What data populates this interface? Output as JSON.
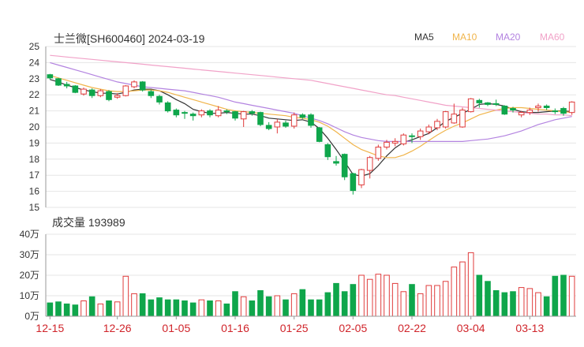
{
  "header": {
    "title": "士兰微[SH600460] 2024-03-19",
    "legend": [
      {
        "label": "MA5",
        "color": "#333333"
      },
      {
        "label": "MA10",
        "color": "#f0b44a"
      },
      {
        "label": "MA20",
        "color": "#b383e0"
      },
      {
        "label": "MA60",
        "color": "#f1a2c8"
      }
    ]
  },
  "volume_header": "成交量 193989",
  "colors": {
    "up": "#e03c3c",
    "down": "#0fa64b",
    "grid": "#e6e6e6",
    "axis": "#555555",
    "date_label": "#d0242a"
  },
  "chart_data": [
    {
      "type": "candlestick",
      "title": "士兰微[SH600460] 2024-03-19",
      "ylim": [
        15,
        25
      ],
      "yticks": [
        "15",
        "16",
        "17",
        "18",
        "19",
        "20",
        "21",
        "22",
        "23",
        "24",
        "25"
      ],
      "xtick_labels": [
        {
          "index": 0,
          "label": "12-15"
        },
        {
          "index": 8,
          "label": "12-26"
        },
        {
          "index": 15,
          "label": "01-05"
        },
        {
          "index": 22,
          "label": "01-16"
        },
        {
          "index": 29,
          "label": "01-25"
        },
        {
          "index": 36,
          "label": "02-05"
        },
        {
          "index": 43,
          "label": "02-22"
        },
        {
          "index": 50,
          "label": "03-04"
        },
        {
          "index": 57,
          "label": "03-13"
        }
      ],
      "candles": [
        [
          23.25,
          23.05,
          23.3,
          22.95
        ],
        [
          23.0,
          22.6,
          23.05,
          22.55
        ],
        [
          22.65,
          22.55,
          22.8,
          22.4
        ],
        [
          22.55,
          22.15,
          22.6,
          22.1
        ],
        [
          22.05,
          22.35,
          22.45,
          21.95
        ],
        [
          22.3,
          21.95,
          22.4,
          21.8
        ],
        [
          21.95,
          22.25,
          22.35,
          21.85
        ],
        [
          22.2,
          21.7,
          22.3,
          21.6
        ],
        [
          21.85,
          21.95,
          22.1,
          21.75
        ],
        [
          21.95,
          22.55,
          22.6,
          21.9
        ],
        [
          22.5,
          22.8,
          22.9,
          22.4
        ],
        [
          22.8,
          22.3,
          22.85,
          22.2
        ],
        [
          22.2,
          21.95,
          22.3,
          21.8
        ],
        [
          21.9,
          21.55,
          22.0,
          21.4
        ],
        [
          21.5,
          21.0,
          21.6,
          20.9
        ],
        [
          21.05,
          20.75,
          21.15,
          20.6
        ],
        [
          20.9,
          20.85,
          21.0,
          20.5
        ],
        [
          20.8,
          20.7,
          20.9,
          20.4
        ],
        [
          20.75,
          21.0,
          21.1,
          20.6
        ],
        [
          21.0,
          20.75,
          21.1,
          20.6
        ],
        [
          20.7,
          21.05,
          21.3,
          20.6
        ],
        [
          21.0,
          20.95,
          21.1,
          20.8
        ],
        [
          20.95,
          20.55,
          21.0,
          20.4
        ],
        [
          20.5,
          20.95,
          21.0,
          20.0
        ],
        [
          20.95,
          20.85,
          21.05,
          20.7
        ],
        [
          20.9,
          20.15,
          20.95,
          20.05
        ],
        [
          20.1,
          19.9,
          20.3,
          19.8
        ],
        [
          20.0,
          20.3,
          20.5,
          19.6
        ],
        [
          20.25,
          20.05,
          20.4,
          19.95
        ],
        [
          20.05,
          20.75,
          20.9,
          19.9
        ],
        [
          20.75,
          20.6,
          20.85,
          20.5
        ],
        [
          20.75,
          20.1,
          20.85,
          19.95
        ],
        [
          19.95,
          19.1,
          20.0,
          19.05
        ],
        [
          18.9,
          18.15,
          19.0,
          17.95
        ],
        [
          17.85,
          17.75,
          18.2,
          17.6
        ],
        [
          18.3,
          16.9,
          18.35,
          16.7
        ],
        [
          17.1,
          16.05,
          17.15,
          15.8
        ],
        [
          16.4,
          17.35,
          17.4,
          16.2
        ],
        [
          17.3,
          18.1,
          18.2,
          16.8
        ],
        [
          18.05,
          18.75,
          18.9,
          17.9
        ],
        [
          18.75,
          19.05,
          19.2,
          18.6
        ],
        [
          19.0,
          19.1,
          19.3,
          18.8
        ],
        [
          18.95,
          19.5,
          19.6,
          18.85
        ],
        [
          19.45,
          19.4,
          19.6,
          19.0
        ],
        [
          19.4,
          19.75,
          19.9,
          19.2
        ],
        [
          19.7,
          20.0,
          20.15,
          19.55
        ],
        [
          19.95,
          20.35,
          20.5,
          19.8
        ],
        [
          20.0,
          20.95,
          21.0,
          19.9
        ],
        [
          20.25,
          20.8,
          21.45,
          20.2
        ],
        [
          20.0,
          21.05,
          21.2,
          19.95
        ],
        [
          20.95,
          21.75,
          21.8,
          20.9
        ],
        [
          21.65,
          21.5,
          21.75,
          21.2
        ],
        [
          21.5,
          21.4,
          21.55,
          21.3
        ],
        [
          21.45,
          21.4,
          21.7,
          21.3
        ],
        [
          21.3,
          20.8,
          21.35,
          20.75
        ],
        [
          21.15,
          21.05,
          21.25,
          20.9
        ],
        [
          20.75,
          20.9,
          21.0,
          20.6
        ],
        [
          20.9,
          21.05,
          21.2,
          20.75
        ],
        [
          21.2,
          21.3,
          21.45,
          20.95
        ],
        [
          21.3,
          21.2,
          21.4,
          21.05
        ],
        [
          21.0,
          20.95,
          21.15,
          20.8
        ],
        [
          21.15,
          20.85,
          21.25,
          20.7
        ],
        [
          20.9,
          21.55,
          21.6,
          20.75
        ]
      ],
      "ma": {
        "MA5": [
          22.95,
          22.8,
          22.6,
          22.45,
          22.3,
          22.2,
          22.1,
          22.1,
          22.05,
          22.15,
          22.3,
          22.35,
          22.35,
          22.25,
          22.0,
          21.7,
          21.45,
          21.1,
          20.95,
          20.85,
          20.85,
          20.9,
          20.85,
          20.8,
          20.8,
          20.7,
          20.55,
          20.5,
          20.45,
          20.4,
          20.45,
          20.3,
          19.9,
          19.3,
          18.6,
          17.85,
          17.05,
          16.95,
          17.1,
          17.6,
          18.2,
          18.7,
          19.05,
          19.2,
          19.4,
          19.6,
          19.95,
          20.35,
          20.6,
          20.85,
          21.1,
          21.4,
          21.45,
          21.4,
          21.3,
          21.1,
          20.95,
          20.9,
          20.9,
          20.95,
          21.0,
          21.0,
          20.95
        ],
        "MA10": [
          23.2,
          23.05,
          22.9,
          22.75,
          22.6,
          22.45,
          22.35,
          22.25,
          22.2,
          22.2,
          22.25,
          22.3,
          22.3,
          22.25,
          22.15,
          22.0,
          21.85,
          21.7,
          21.55,
          21.4,
          21.25,
          21.1,
          21.0,
          20.95,
          20.9,
          20.85,
          20.8,
          20.75,
          20.7,
          20.6,
          20.55,
          20.45,
          20.3,
          20.05,
          19.7,
          19.3,
          18.9,
          18.6,
          18.4,
          18.2,
          18.1,
          18.1,
          18.25,
          18.5,
          18.8,
          19.15,
          19.5,
          19.8,
          20.05,
          20.25,
          20.5,
          20.75,
          20.9,
          21.05,
          21.15,
          21.2,
          21.2,
          21.15,
          21.1,
          21.05,
          21.0,
          20.95,
          20.9
        ],
        "MA20": [
          24.0,
          23.85,
          23.7,
          23.55,
          23.4,
          23.25,
          23.1,
          22.95,
          22.8,
          22.7,
          22.6,
          22.5,
          22.45,
          22.4,
          22.35,
          22.3,
          22.25,
          22.15,
          22.05,
          21.95,
          21.85,
          21.7,
          21.55,
          21.45,
          21.35,
          21.25,
          21.15,
          21.05,
          20.95,
          20.85,
          20.7,
          20.55,
          20.4,
          20.2,
          19.95,
          19.7,
          19.5,
          19.35,
          19.25,
          19.15,
          19.1,
          19.1,
          19.1,
          19.1,
          19.1,
          19.1,
          19.1,
          19.1,
          19.1,
          19.1,
          19.15,
          19.2,
          19.25,
          19.35,
          19.45,
          19.6,
          19.75,
          19.95,
          20.15,
          20.3,
          20.45,
          20.55,
          20.65
        ],
        "MA60": [
          24.45,
          24.4,
          24.35,
          24.3,
          24.25,
          24.2,
          24.15,
          24.1,
          24.05,
          24.0,
          23.95,
          23.9,
          23.85,
          23.8,
          23.75,
          23.7,
          23.65,
          23.6,
          23.55,
          23.5,
          23.45,
          23.4,
          23.35,
          23.3,
          23.25,
          23.2,
          23.15,
          23.1,
          23.05,
          23.0,
          22.95,
          22.9,
          22.8,
          22.7,
          22.6,
          22.5,
          22.4,
          22.3,
          22.2,
          22.1,
          22.0,
          21.95,
          21.85,
          21.75,
          21.65,
          21.55,
          21.45,
          21.35,
          21.3,
          21.25,
          21.2,
          21.15,
          21.1,
          21.05,
          21.0,
          20.95,
          20.9,
          20.85,
          20.8,
          20.8,
          20.75,
          20.75,
          20.7
        ]
      }
    },
    {
      "type": "bar",
      "title": "成交量 193989",
      "ylim": [
        0,
        40
      ],
      "yticks": [
        "0万",
        "10万",
        "20万",
        "30万",
        "40万"
      ],
      "values": [
        6.5,
        7,
        6,
        5.5,
        7.5,
        9.5,
        6,
        7.5,
        7,
        19.5,
        11,
        11,
        8,
        9,
        8,
        8,
        7.5,
        6.5,
        8,
        7.5,
        7.5,
        6,
        12,
        9.5,
        7.5,
        12.5,
        9.5,
        10,
        8,
        11,
        13,
        8,
        8,
        11.5,
        16,
        12,
        15.5,
        20,
        18,
        20.5,
        20,
        16,
        12,
        15.5,
        11,
        15,
        15,
        17,
        24,
        26.5,
        31,
        20,
        17,
        12.5,
        11.5,
        12,
        14,
        13.5,
        11.5,
        9.5,
        19.5,
        20,
        19.5
      ]
    }
  ]
}
